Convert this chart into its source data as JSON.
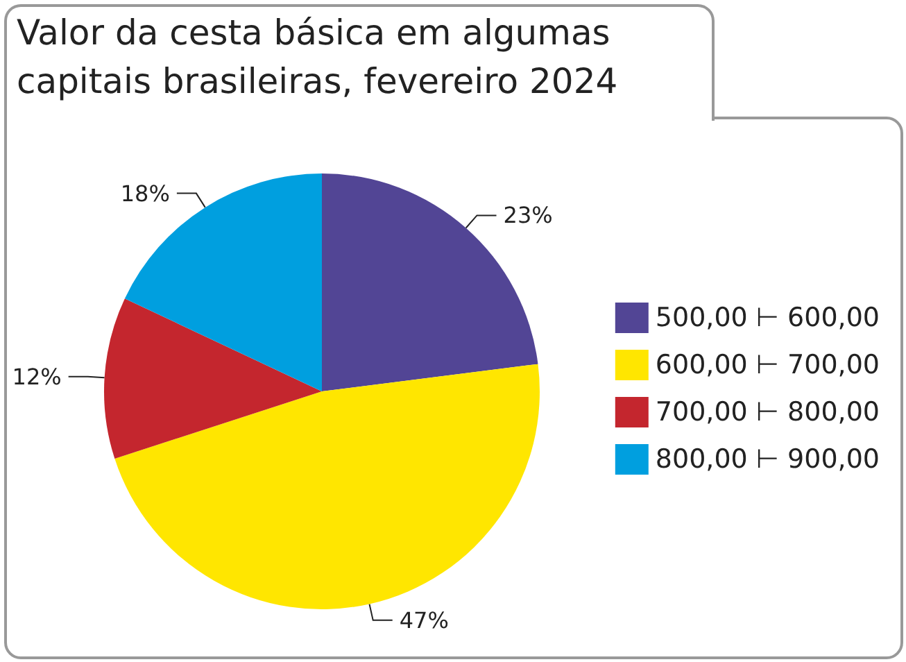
{
  "chart_data": {
    "type": "pie",
    "title": "Valor da cesta básica em algumas capitais brasileiras, fevereiro 2024",
    "categories": [
      "500,00 ⊢ 600,00",
      "600,00 ⊢ 700,00",
      "700,00 ⊢ 800,00",
      "800,00 ⊢ 900,00"
    ],
    "values": [
      23,
      47,
      12,
      18
    ],
    "value_labels": [
      "23%",
      "47%",
      "12%",
      "18%"
    ],
    "colors": [
      "#524595",
      "#ffe600",
      "#c4262e",
      "#009fdf"
    ],
    "legend": "right"
  }
}
